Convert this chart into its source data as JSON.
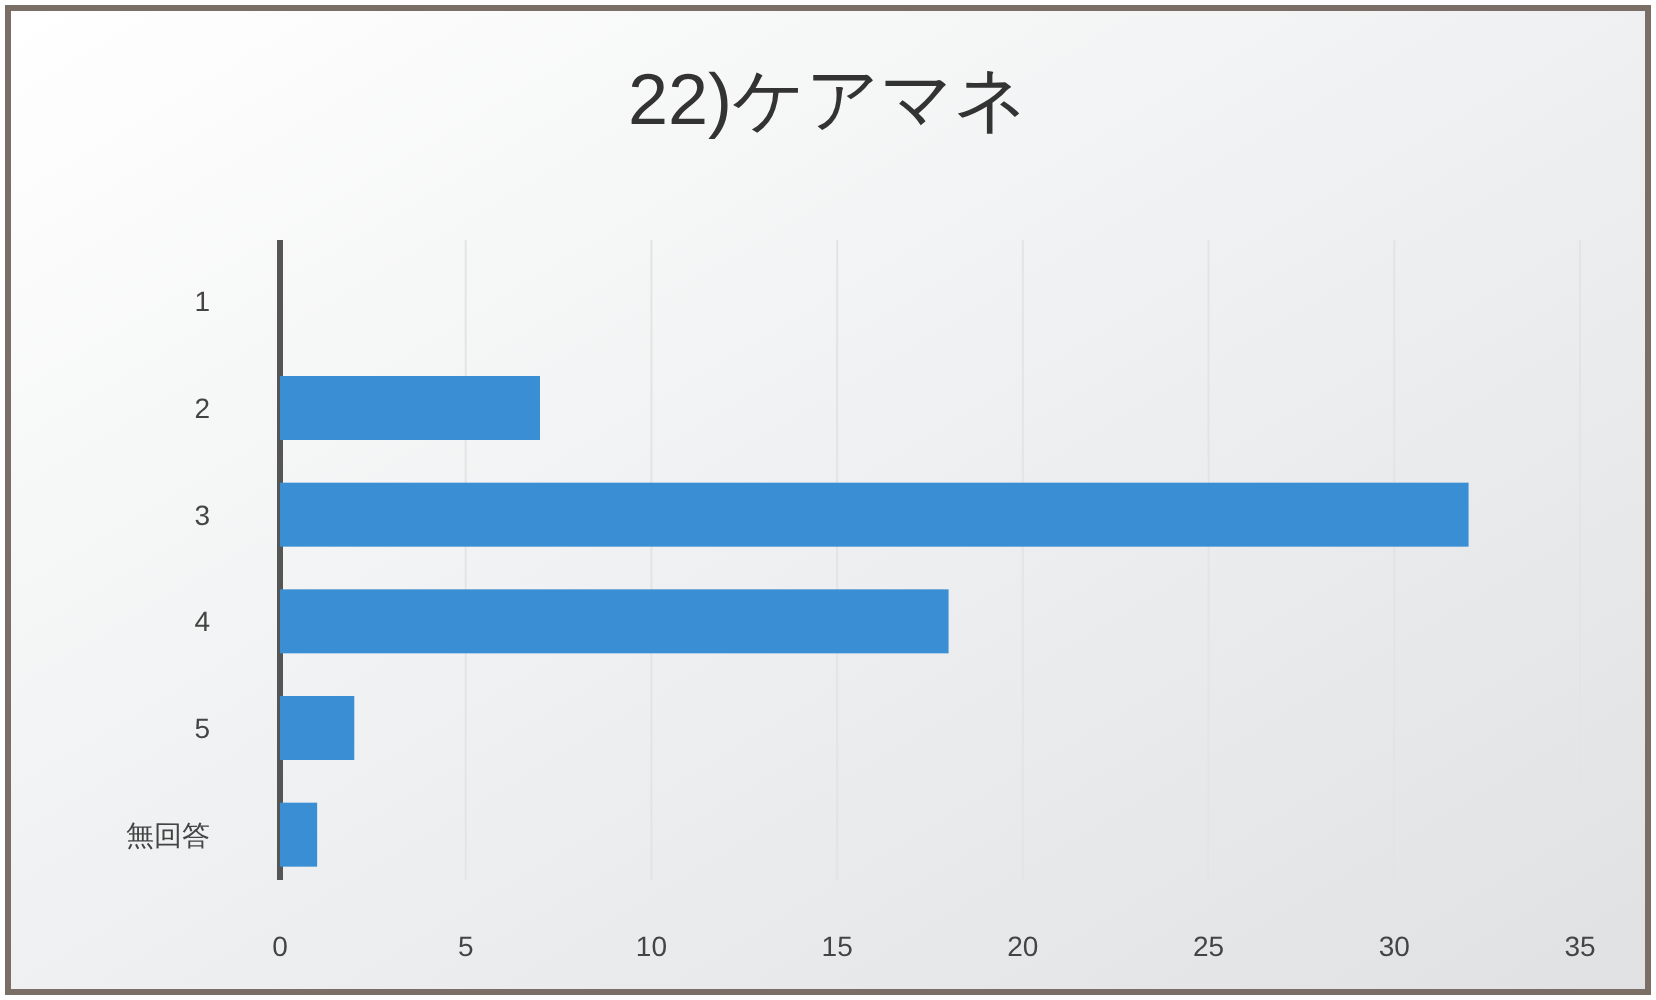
{
  "chart_data": {
    "type": "bar",
    "orientation": "horizontal",
    "title": "22)ケアマネ",
    "categories": [
      "1",
      "2",
      "3",
      "4",
      "5",
      "無回答"
    ],
    "values": [
      0,
      7,
      32,
      18,
      2,
      1
    ],
    "color": "#3a8fd4",
    "xlim": [
      0,
      35
    ],
    "xticks": [
      0,
      5,
      10,
      15,
      20,
      25,
      30,
      35
    ],
    "grid": "x"
  }
}
